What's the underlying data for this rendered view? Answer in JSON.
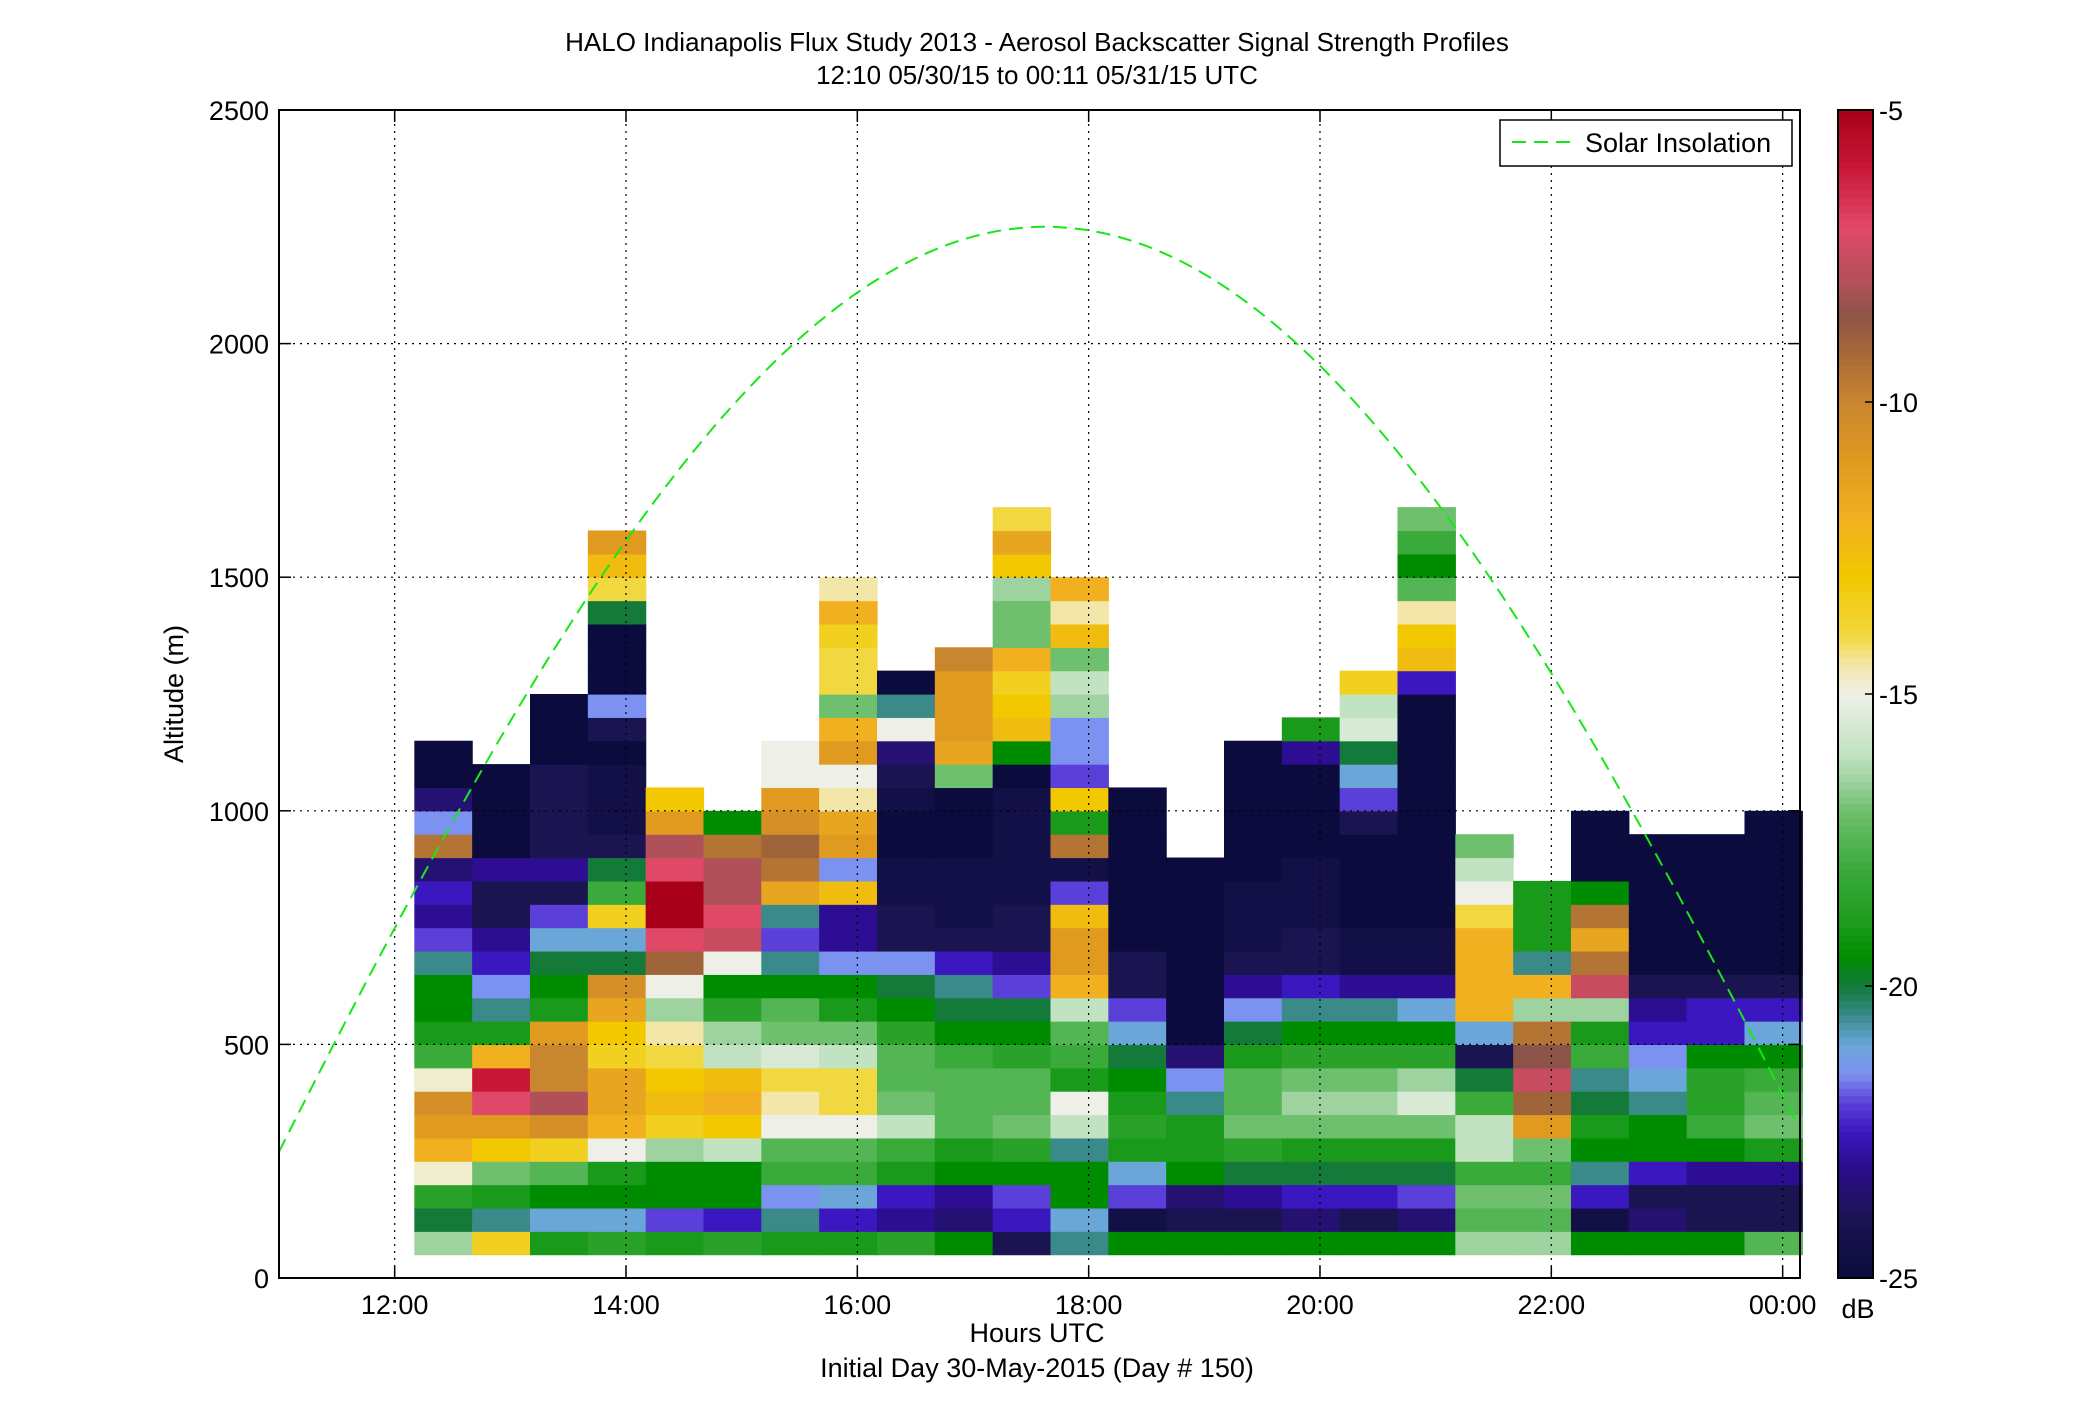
{
  "chart_data": {
    "type": "heatmap",
    "title": "HALO Indianapolis Flux Study 2013 - Aerosol Backscatter Signal Strength Profiles",
    "subtitle": "12:10 05/30/15 to 00:11 05/31/15  UTC",
    "xlabel": "Hours UTC",
    "xlabel2": "Initial Day 30-May-2015 (Day # 150)",
    "ylabel": "Altitude (m)",
    "xlim": [
      11.0,
      24.15
    ],
    "ylim": [
      0,
      2500
    ],
    "x_ticks": [
      12,
      14,
      16,
      18,
      20,
      22,
      24
    ],
    "x_tick_labels": [
      "12:00",
      "14:00",
      "16:00",
      "18:00",
      "20:00",
      "22:00",
      "00:00"
    ],
    "y_ticks": [
      0,
      500,
      1000,
      1500,
      2000,
      2500
    ],
    "y_tick_labels": [
      "0",
      "500",
      "1000",
      "1500",
      "2000",
      "2500"
    ],
    "grid": true,
    "colorbar": {
      "label": "dB",
      "range": [
        -25,
        -5
      ],
      "ticks": [
        -5,
        -10,
        -15,
        -20,
        -25
      ],
      "tick_labels": [
        "-5",
        "-10",
        "-15",
        "-20",
        "-25"
      ]
    },
    "legend": {
      "entries": [
        "Solar Insolation"
      ],
      "position": "top-right"
    },
    "solar_insolation": {
      "color": "#19e619",
      "style": "dashed",
      "peak_time_hours": 17.6,
      "peak_altitude_m": 2250,
      "zero_hours": [
        10.45,
        24.8
      ]
    },
    "profile_time_bin_hours": 0.5,
    "altitude_bin_m": 50,
    "profile_start_hours": 12.17,
    "profiles": [
      {
        "time": 12.42,
        "dB": [
          -16.5,
          -20,
          -18.5,
          -14.8,
          -12,
          -11,
          -10.5,
          -14.8,
          -18,
          -19,
          -19.5,
          -19.5,
          -20.5,
          -22,
          -23,
          -22.5,
          -23.5,
          -9.5,
          -21.5,
          -23.5,
          -25,
          -25
        ]
      },
      {
        "time": 12.92,
        "dB": [
          -13.5,
          -20.5,
          -19,
          -17,
          -13,
          -11,
          -7,
          -6,
          -12,
          -19,
          -20.5,
          -21.5,
          -22.5,
          -23,
          -24,
          -24,
          -23,
          -25,
          -25,
          -25,
          -25
        ]
      },
      {
        "time": 13.42,
        "dB": [
          -19,
          -21,
          -19.5,
          -17.5,
          -13.5,
          -10.5,
          -8,
          -10,
          -10,
          -11,
          -19,
          -19.5,
          -20,
          -21,
          -22,
          -24,
          -23,
          -24,
          -24,
          -24,
          -24,
          -25,
          -25,
          -25
        ]
      },
      {
        "time": 13.92,
        "dB": [
          -18.5,
          -21,
          -19.5,
          -19,
          -15,
          -12,
          -11.5,
          -11.5,
          -13.5,
          -13,
          -11.5,
          -10.5,
          -20,
          -21,
          -13.5,
          -18,
          -20,
          -24,
          -24.5,
          -24.5,
          -24.5,
          -25,
          -24,
          -21.5,
          -25,
          -25,
          -25,
          -20,
          -14,
          -12.5,
          -11
        ]
      },
      {
        "time": 14.42,
        "dB": [
          -19,
          -22,
          -19.5,
          -19.5,
          -16.5,
          -13.5,
          -12.5,
          -13,
          -14,
          -14.5,
          -16.5,
          -15,
          -9,
          -7,
          -5,
          -5,
          -7,
          -8,
          -11,
          -13
        ]
      },
      {
        "time": 14.92,
        "dB": [
          -18.5,
          -22.5,
          -19.5,
          -19.5,
          -16,
          -13,
          -12,
          -12.5,
          -16,
          -16.5,
          -18.5,
          -19.5,
          -15,
          -7.5,
          -7,
          -8,
          -8,
          -9.5,
          -19.5
        ]
      },
      {
        "time": 15.42,
        "dB": [
          -19,
          -20.5,
          -21.5,
          -18,
          -17.5,
          -15,
          -14.5,
          -14,
          -15.5,
          -17,
          -17.5,
          -19.5,
          -20.5,
          -22,
          -20.5,
          -11.5,
          -9.5,
          -9,
          -10.5,
          -11,
          -15,
          -15
        ]
      },
      {
        "time": 15.92,
        "dB": [
          -19,
          -22.5,
          -21,
          -18,
          -17.5,
          -15,
          -14,
          -14,
          -16,
          -17,
          -19,
          -19.5,
          -21.5,
          -23,
          -23,
          -12.5,
          -21.5,
          -11,
          -11.5,
          -14.5,
          -15,
          -11,
          -12,
          -17,
          -14,
          -14,
          -13.5,
          -12,
          -14.5
        ]
      },
      {
        "time": 16.42,
        "dB": [
          -18.5,
          -23,
          -22.5,
          -19,
          -18,
          -16,
          -17,
          -17.5,
          -17.5,
          -18.5,
          -19.5,
          -20,
          -21.5,
          -24,
          -24,
          -24.5,
          -24.5,
          -25,
          -25,
          -24.5,
          -24,
          -23.5,
          -15,
          -20.5,
          -25
        ]
      },
      {
        "time": 16.92,
        "dB": [
          -19.5,
          -23.5,
          -23,
          -19.5,
          -19,
          -17.5,
          -17.5,
          -17.5,
          -18,
          -19.5,
          -20,
          -20.5,
          -22.5,
          -24,
          -24.5,
          -24.5,
          -24.5,
          -25,
          -25,
          -25,
          -17,
          -11.5,
          -11,
          -11,
          -11,
          -10
        ]
      },
      {
        "time": 17.42,
        "dB": [
          -24,
          -22.5,
          -22,
          -19.5,
          -18.5,
          -17,
          -17.5,
          -17.5,
          -18.5,
          -19.5,
          -20,
          -22,
          -23,
          -24,
          -24,
          -24.5,
          -24.5,
          -24.5,
          -24.5,
          -24.5,
          -25,
          -19.5,
          -12.5,
          -13,
          -13.5,
          -12,
          -17,
          -17,
          -16.5,
          -13,
          -11.5,
          -14
        ]
      },
      {
        "time": 17.92,
        "dB": [
          -20.5,
          -21,
          -19.5,
          -19.5,
          -20.5,
          -16,
          -15,
          -19,
          -18,
          -17.5,
          -16,
          -12,
          -11,
          -11,
          -12.5,
          -22,
          -24.5,
          -9.5,
          -19,
          -13,
          -22,
          -21.5,
          -21.5,
          -16.5,
          -16,
          -17,
          -12.5,
          -14.5,
          -12
        ]
      },
      {
        "time": 18.42,
        "dB": [
          -19.5,
          -24.5,
          -22,
          -21,
          -19,
          -18.5,
          -19,
          -19.5,
          -20,
          -21,
          -22,
          -24,
          -24,
          -25,
          -25,
          -25,
          -25,
          -25,
          -25,
          -25
        ]
      },
      {
        "time": 18.92,
        "dB": [
          -19.5,
          -24,
          -23.5,
          -19.5,
          -19,
          -19,
          -20.5,
          -21.5,
          -23.5,
          -25,
          -25,
          -25,
          -25,
          -25,
          -25,
          -25,
          -25
        ]
      },
      {
        "time": 19.42,
        "dB": [
          -19.5,
          -24,
          -23,
          -20,
          -18.5,
          -17,
          -17.5,
          -17.5,
          -19,
          -20,
          -21.5,
          -23,
          -24,
          -24.5,
          -24.5,
          -24.5,
          -25,
          -25,
          -25,
          -25,
          -25,
          -25
        ]
      },
      {
        "time": 19.92,
        "dB": [
          -19.5,
          -23.5,
          -22.5,
          -20,
          -19,
          -17,
          -16.5,
          -17,
          -18.5,
          -19.5,
          -20.5,
          -22.5,
          -24,
          -24,
          -24.5,
          -24.5,
          -24.5,
          -25,
          -25,
          -25,
          -25,
          -23,
          -19
        ]
      },
      {
        "time": 20.42,
        "dB": [
          -19.5,
          -24,
          -22.5,
          -20,
          -19,
          -17,
          -16.5,
          -17,
          -18.5,
          -19.5,
          -20.5,
          -23,
          -24.5,
          -24.5,
          -25,
          -25,
          -25,
          -25,
          -24,
          -22,
          -21,
          -20,
          -15.5,
          -16,
          -13.5
        ]
      },
      {
        "time": 20.92,
        "dB": [
          -19.5,
          -23.5,
          -22,
          -20,
          -19,
          -17,
          -15.5,
          -16.5,
          -18.5,
          -19.5,
          -21,
          -23,
          -24.5,
          -24.5,
          -25,
          -25,
          -25,
          -25,
          -25,
          -25,
          -25,
          -25,
          -25,
          -25,
          -22.5,
          -12.5,
          -13,
          -14.5,
          -17.5,
          -19.5,
          -18,
          -17
        ]
      },
      {
        "time": 21.42,
        "dB": [
          -16.5,
          -17.5,
          -17,
          -18,
          -16,
          -16,
          -18,
          -20,
          -24,
          -21,
          -12,
          -12,
          -12,
          -12,
          -14,
          -15,
          -16,
          -17
        ]
      },
      {
        "time": 21.92,
        "dB": [
          -16.5,
          -17.5,
          -17,
          -18,
          -17,
          -11,
          -9,
          -7.5,
          -8.5,
          -9.5,
          -16.5,
          -12,
          -20.5,
          -19,
          -19,
          -19
        ]
      },
      {
        "time": 22.42,
        "dB": [
          -19.5,
          -24.5,
          -22.5,
          -20.5,
          -19.5,
          -19,
          -20,
          -20.5,
          -18,
          -19,
          -16.5,
          -7.5,
          -9.5,
          -11.5,
          -9.5,
          -19.5,
          -25,
          -25,
          -25
        ]
      },
      {
        "time": 22.92,
        "dB": [
          -19.5,
          -23.5,
          -24,
          -22.5,
          -19.5,
          -19.5,
          -20.5,
          -21,
          -21.5,
          -22.5,
          -23,
          -24,
          -25,
          -25,
          -25,
          -25,
          -25,
          -25
        ]
      },
      {
        "time": 23.42,
        "dB": [
          -19.5,
          -24,
          -24,
          -23,
          -19.5,
          -18,
          -18.5,
          -18.5,
          -19.5,
          -22.5,
          -22.5,
          -24,
          -25,
          -25,
          -25,
          -25,
          -25,
          -25
        ]
      },
      {
        "time": 23.92,
        "dB": [
          -17.5,
          -24,
          -24,
          -23,
          -19,
          -17,
          -17.5,
          -18,
          -19.5,
          -21,
          -22.5,
          -24,
          -25,
          -25,
          -25,
          -25,
          -25,
          -25,
          -25
        ]
      }
    ]
  },
  "legend_label": "Solar Insolation",
  "colorbar_unit": "dB"
}
